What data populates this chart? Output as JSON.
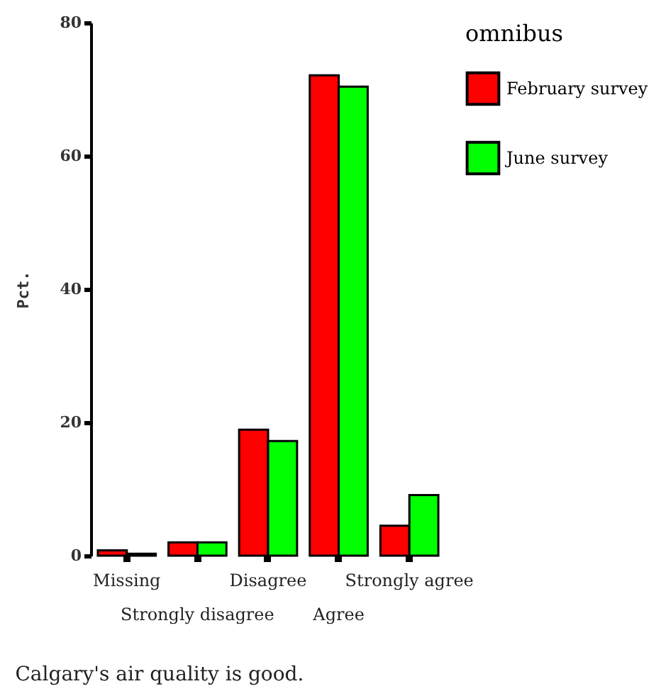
{
  "chart_data": {
    "type": "bar",
    "title": "Calgary's air quality is good.",
    "ylabel": "Pct.",
    "legend_title": "omnibus",
    "categories": [
      "Missing",
      "Strongly disagree",
      "Disagree",
      "Agree",
      "Strongly agree"
    ],
    "series": [
      {
        "name": "February survey",
        "color": "#ff0000",
        "values": [
          0.8,
          2.0,
          18.9,
          72.1,
          4.5
        ]
      },
      {
        "name": "June survey",
        "color": "#00ff00",
        "values": [
          0.3,
          2.0,
          17.2,
          70.4,
          9.1
        ]
      }
    ],
    "ylim": [
      0,
      80
    ],
    "yticks": [
      0,
      20,
      40,
      60,
      80
    ],
    "grid": false,
    "legend": "right"
  }
}
